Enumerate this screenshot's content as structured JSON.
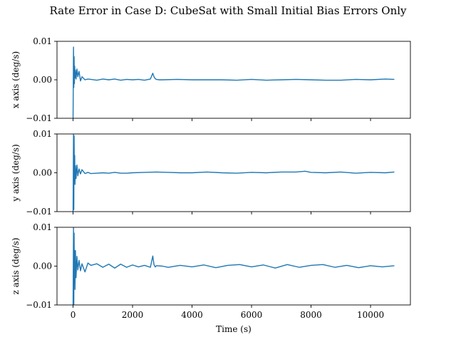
{
  "chart_data": {
    "type": "line",
    "title": "Rate Error in Case D: CubeSat with Small Initial Bias Errors Only",
    "xlabel": "Time (s)",
    "xlim": [
      -540,
      11340
    ],
    "xticks": [
      0,
      2000,
      4000,
      6000,
      8000,
      10000
    ],
    "xtick_labels": [
      "0",
      "2000",
      "4000",
      "6000",
      "8000",
      "10000"
    ],
    "line_color": "#1f77b4",
    "grid": false,
    "panels": [
      {
        "ylabel": "x axis (deg/s)",
        "ylim": [
          -0.01,
          0.01
        ],
        "yticks": [
          -0.01,
          0.0,
          0.01
        ],
        "ytick_labels": [
          "−0.01",
          "0.00",
          "0.01"
        ],
        "series": [
          {
            "x": [
              0,
              15,
              25,
              35,
              45,
              55,
              65,
              80,
              100,
              130,
              160,
              200,
              250,
              300,
              400,
              500,
              600,
              800,
              1000,
              1200,
              1400,
              1600,
              1800,
              2000,
              2200,
              2400,
              2600,
              2680,
              2720,
              2760,
              2800,
              2900,
              3000,
              3500,
              4000,
              4500,
              5000,
              5500,
              6000,
              6500,
              7000,
              7500,
              8000,
              8500,
              9000,
              9500,
              10000,
              10500,
              10800
            ],
            "y": [
              -0.0099,
              0.0085,
              -0.002,
              0.006,
              -0.001,
              0.0035,
              0.0005,
              0.0025,
              0.0002,
              0.0028,
              0.0008,
              0.0022,
              -0.0003,
              0.0008,
              0.0,
              0.0002,
              0.0001,
              -0.0001,
              0.0002,
              0.0,
              0.0002,
              -0.0001,
              0.0001,
              0.0,
              0.0001,
              -0.0001,
              0.0002,
              0.0017,
              0.0008,
              0.0003,
              0.0001,
              0.0,
              0.0,
              0.0001,
              0.0,
              0.0,
              0.0,
              -0.0001,
              0.0001,
              -0.0001,
              0.0,
              0.0001,
              0.0,
              -0.0001,
              -0.0001,
              0.0001,
              0.0,
              0.0002,
              0.0001
            ]
          }
        ]
      },
      {
        "ylabel": "y axis (deg/s)",
        "ylim": [
          -0.01,
          0.01
        ],
        "yticks": [
          -0.01,
          0.0,
          0.01
        ],
        "ytick_labels": [
          "−0.01",
          "0.00",
          "0.01"
        ],
        "series": [
          {
            "x": [
              0,
              15,
              25,
              35,
              45,
              55,
              65,
              80,
              100,
              130,
              160,
              200,
              250,
              300,
              400,
              500,
              600,
              800,
              1000,
              1200,
              1400,
              1600,
              1800,
              2000,
              2400,
              2800,
              3200,
              3600,
              4000,
              4500,
              5000,
              5500,
              6000,
              6500,
              7000,
              7500,
              7800,
              8000,
              8500,
              9000,
              9500,
              10000,
              10500,
              10800
            ],
            "y": [
              -0.0099,
              0.0099,
              -0.0095,
              0.0095,
              -0.002,
              0.0045,
              -0.003,
              0.0018,
              -0.0015,
              0.002,
              -0.0008,
              0.001,
              -0.0003,
              0.0008,
              -0.0002,
              0.0001,
              -0.0002,
              -0.0001,
              0.0,
              -0.0001,
              0.0001,
              -0.0001,
              -0.0001,
              0.0,
              0.0001,
              0.0002,
              0.0001,
              0.0,
              0.0,
              0.0002,
              0.0,
              -0.0001,
              0.0001,
              0.0,
              0.0002,
              0.0002,
              0.0004,
              0.0001,
              0.0,
              0.0002,
              -0.0001,
              0.0001,
              0.0,
              0.0002
            ]
          }
        ]
      },
      {
        "ylabel": "z axis (deg/s)",
        "ylim": [
          -0.01,
          0.01
        ],
        "yticks": [
          -0.01,
          0.0,
          0.01
        ],
        "ytick_labels": [
          "−0.01",
          "0.00",
          "0.01"
        ],
        "series": [
          {
            "x": [
              0,
              15,
              25,
              35,
              45,
              55,
              65,
              80,
              100,
              130,
              160,
              200,
              250,
              300,
              400,
              500,
              600,
              800,
              1000,
              1200,
              1400,
              1600,
              1800,
              2000,
              2200,
              2400,
              2600,
              2680,
              2720,
              2760,
              2800,
              3000,
              3200,
              3600,
              4000,
              4400,
              4800,
              5200,
              5600,
              6000,
              6400,
              6800,
              7200,
              7600,
              8000,
              8400,
              8800,
              9200,
              9600,
              10000,
              10400,
              10800
            ],
            "y": [
              -0.0099,
              0.0099,
              -0.0099,
              0.0085,
              -0.0045,
              0.004,
              -0.006,
              0.004,
              -0.003,
              0.0025,
              -0.001,
              0.0015,
              -0.0012,
              0.0006,
              -0.0015,
              0.0008,
              0.0002,
              0.0006,
              -0.0003,
              0.0005,
              -0.0005,
              0.0005,
              -0.0003,
              0.0003,
              -0.0002,
              0.0002,
              -0.0003,
              0.0026,
              0.0004,
              -0.0002,
              0.0001,
              0.0,
              -0.0003,
              0.0002,
              -0.0002,
              0.0003,
              -0.0004,
              0.0002,
              0.0004,
              -0.0002,
              0.0003,
              -0.0005,
              0.0004,
              -0.0003,
              0.0002,
              0.0004,
              -0.0003,
              0.0002,
              -0.0004,
              0.0001,
              -0.0002,
              0.0001
            ]
          }
        ]
      }
    ]
  }
}
